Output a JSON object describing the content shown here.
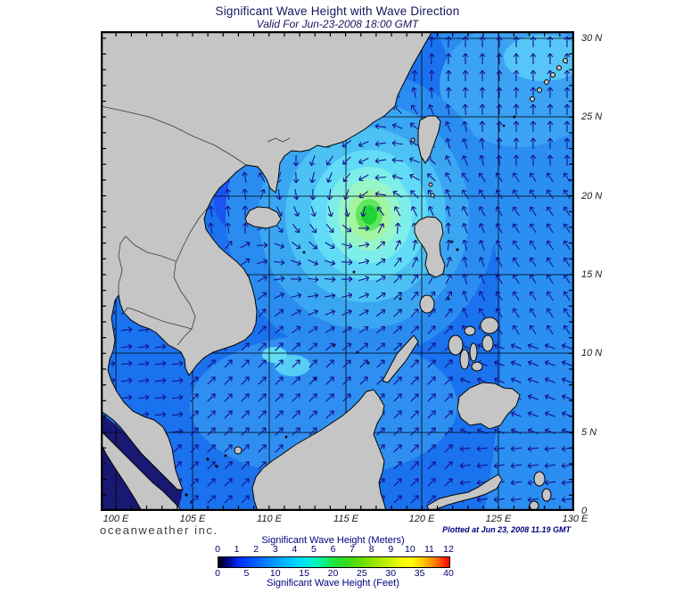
{
  "header": {
    "title": "Significant Wave Height with Wave Direction",
    "subtitle": "Valid For Jun-23-2008 18:00 GMT"
  },
  "footer": {
    "branding": "oceanweather inc.",
    "plotted": "Plotted at Jun 23, 2008 11.19 GMT"
  },
  "axes": {
    "lon_labels": [
      "100 E",
      "105 E",
      "110 E",
      "115 E",
      "120 E",
      "125 E",
      "130 E"
    ],
    "lat_labels": [
      "30 N",
      "25 N",
      "20 N",
      "15 N",
      "10 N",
      "5 N",
      "0"
    ]
  },
  "legend": {
    "meters_label": "Significant Wave Height (Meters)",
    "feet_label": "Significant Wave Height (Feet)",
    "meters_ticks": [
      "0",
      "1",
      "2",
      "3",
      "4",
      "5",
      "6",
      "7",
      "8",
      "9",
      "10",
      "11",
      "12"
    ],
    "feet_ticks": [
      "0",
      "5",
      "10",
      "15",
      "20",
      "25",
      "30",
      "35",
      "40"
    ],
    "gradient": [
      {
        "o": 0,
        "c": "#000000"
      },
      {
        "o": 2,
        "c": "#00004f"
      },
      {
        "o": 5,
        "c": "#000a9e"
      },
      {
        "o": 9,
        "c": "#0030ff"
      },
      {
        "o": 17,
        "c": "#0064ff"
      },
      {
        "o": 25,
        "c": "#009cff"
      },
      {
        "o": 33,
        "c": "#00d0ff"
      },
      {
        "o": 38,
        "c": "#00e8e8"
      },
      {
        "o": 42,
        "c": "#00f6c0"
      },
      {
        "o": 46,
        "c": "#10f080"
      },
      {
        "o": 50,
        "c": "#20e440"
      },
      {
        "o": 54,
        "c": "#30dc20"
      },
      {
        "o": 58,
        "c": "#48dc10"
      },
      {
        "o": 63,
        "c": "#70e000"
      },
      {
        "o": 68,
        "c": "#9ce800"
      },
      {
        "o": 75,
        "c": "#d0f400"
      },
      {
        "o": 79,
        "c": "#f0fc00"
      },
      {
        "o": 83,
        "c": "#ffff00"
      },
      {
        "o": 86,
        "c": "#ffe400"
      },
      {
        "o": 90,
        "c": "#ffb400"
      },
      {
        "o": 94,
        "c": "#ff7800"
      },
      {
        "o": 97,
        "c": "#ff3c00"
      },
      {
        "o": 100,
        "c": "#fe0000"
      }
    ]
  },
  "map": {
    "extent": {
      "lon_min": 99,
      "lon_max": 130,
      "lat_min": 0,
      "lat_max": 30.4
    },
    "grid_step_deg": 5,
    "storm": {
      "approx_lon": 117,
      "approx_lat": 19,
      "peak_height_m": 5
    },
    "colors": {
      "land": "#c5c5c5",
      "coastline": "#000000",
      "country_border": "#3a3a3a",
      "grid": "#000000",
      "frame": "#000000",
      "arrow": "#14148f",
      "ocean_base": "#1b72ee",
      "ocean_east": "#2b8ef2",
      "ne_light1": "#3ba2f4",
      "ne_light2": "#55c6f6",
      "tonkin": "#1a54f2",
      "south_light": "#2f8ff1",
      "patch_cyan1": "#55cdf4",
      "patch_cyan2": "#63dcf6",
      "dark_water": "#191970",
      "storm_rings": [
        "#2a8cf0",
        "#3aa6f2",
        "#4cc2f4",
        "#62dcf6",
        "#7deee8",
        "#97f6c8",
        "#a4f4a0",
        "#5ee75e",
        "#21d233"
      ]
    }
  },
  "chart_data": {
    "type": "heatmap",
    "title": "Significant Wave Height with Wave Direction",
    "subtitle": "Valid For Jun-23-2008 18:00 GMT",
    "x_axis": {
      "label": "Longitude",
      "ticks": [
        "100 E",
        "105 E",
        "110 E",
        "115 E",
        "120 E",
        "125 E",
        "130 E"
      ]
    },
    "y_axis": {
      "label": "Latitude",
      "ticks": [
        "0",
        "5 N",
        "10 N",
        "15 N",
        "20 N",
        "25 N",
        "30 N"
      ]
    },
    "colorbar_meters": {
      "min": 0,
      "max": 12,
      "tick_step": 1
    },
    "colorbar_feet": {
      "min": 0,
      "max": 40,
      "tick_step": 5
    },
    "notable_features": [
      {
        "feature": "storm peak ~4-5 m",
        "lon": 117,
        "lat": 19
      },
      {
        "feature": "background open-ocean heights ~1-2 m"
      },
      {
        "feature": "near-zero heights (dark) in Malacca Strait"
      }
    ]
  }
}
